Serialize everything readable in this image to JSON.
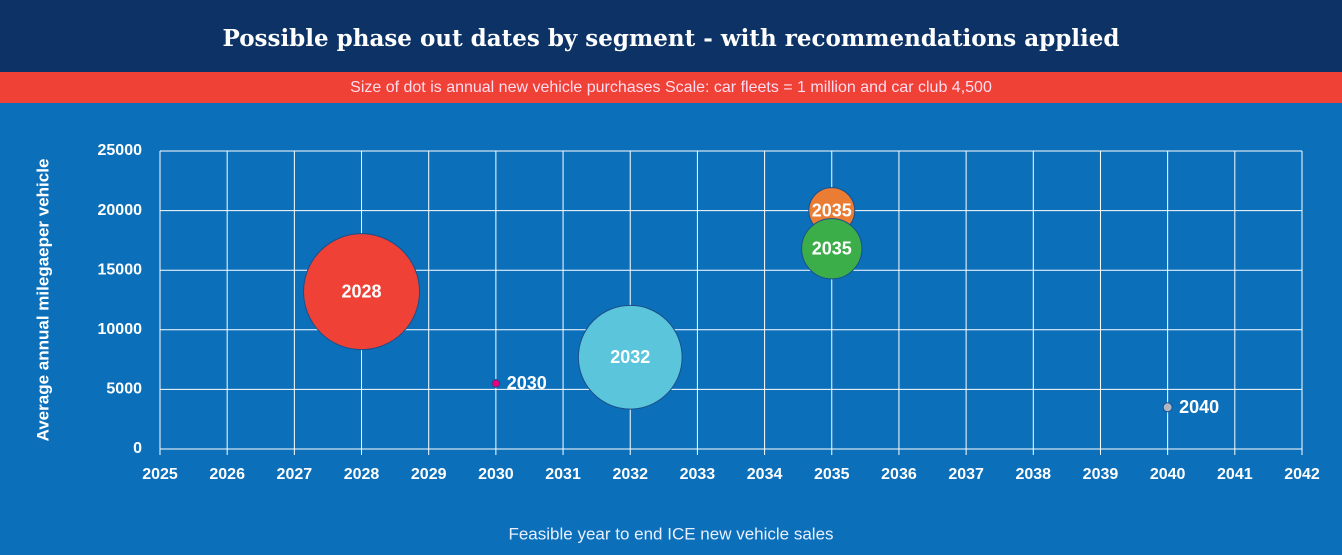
{
  "chart_data": {
    "type": "bubble",
    "title": "Possible phase out dates by segment - with recommendations applied",
    "subtitle": "Size of dot is annual new vehicle purchases Scale: car fleets = 1 million and car club 4,500",
    "x_label": "Feasible year to end ICE new vehicle sales",
    "y_label": "Average annual milegaeper vehicle",
    "x": [
      2028,
      2030,
      2032,
      2035,
      2035,
      2040
    ],
    "values": [
      13200,
      5500,
      7700,
      20000,
      16800,
      3500
    ],
    "sizes": [
      1000000,
      4500,
      800000,
      157000,
      270000,
      6000
    ],
    "colors": [
      "#ef4136",
      "#e6007e",
      "#5bc5dc",
      "#ea7d33",
      "#3cae49",
      "#b0b7c3"
    ],
    "xlim": [
      2025,
      2042
    ],
    "xticks": [
      2025,
      2026,
      2027,
      2028,
      2029,
      2030,
      2031,
      2032,
      2033,
      2034,
      2035,
      2036,
      2037,
      2038,
      2039,
      2040,
      2041,
      2042
    ],
    "ylim": [
      0,
      25000
    ],
    "yticks": [
      0,
      5000,
      10000,
      15000,
      20000,
      25000
    ],
    "grid": true
  }
}
